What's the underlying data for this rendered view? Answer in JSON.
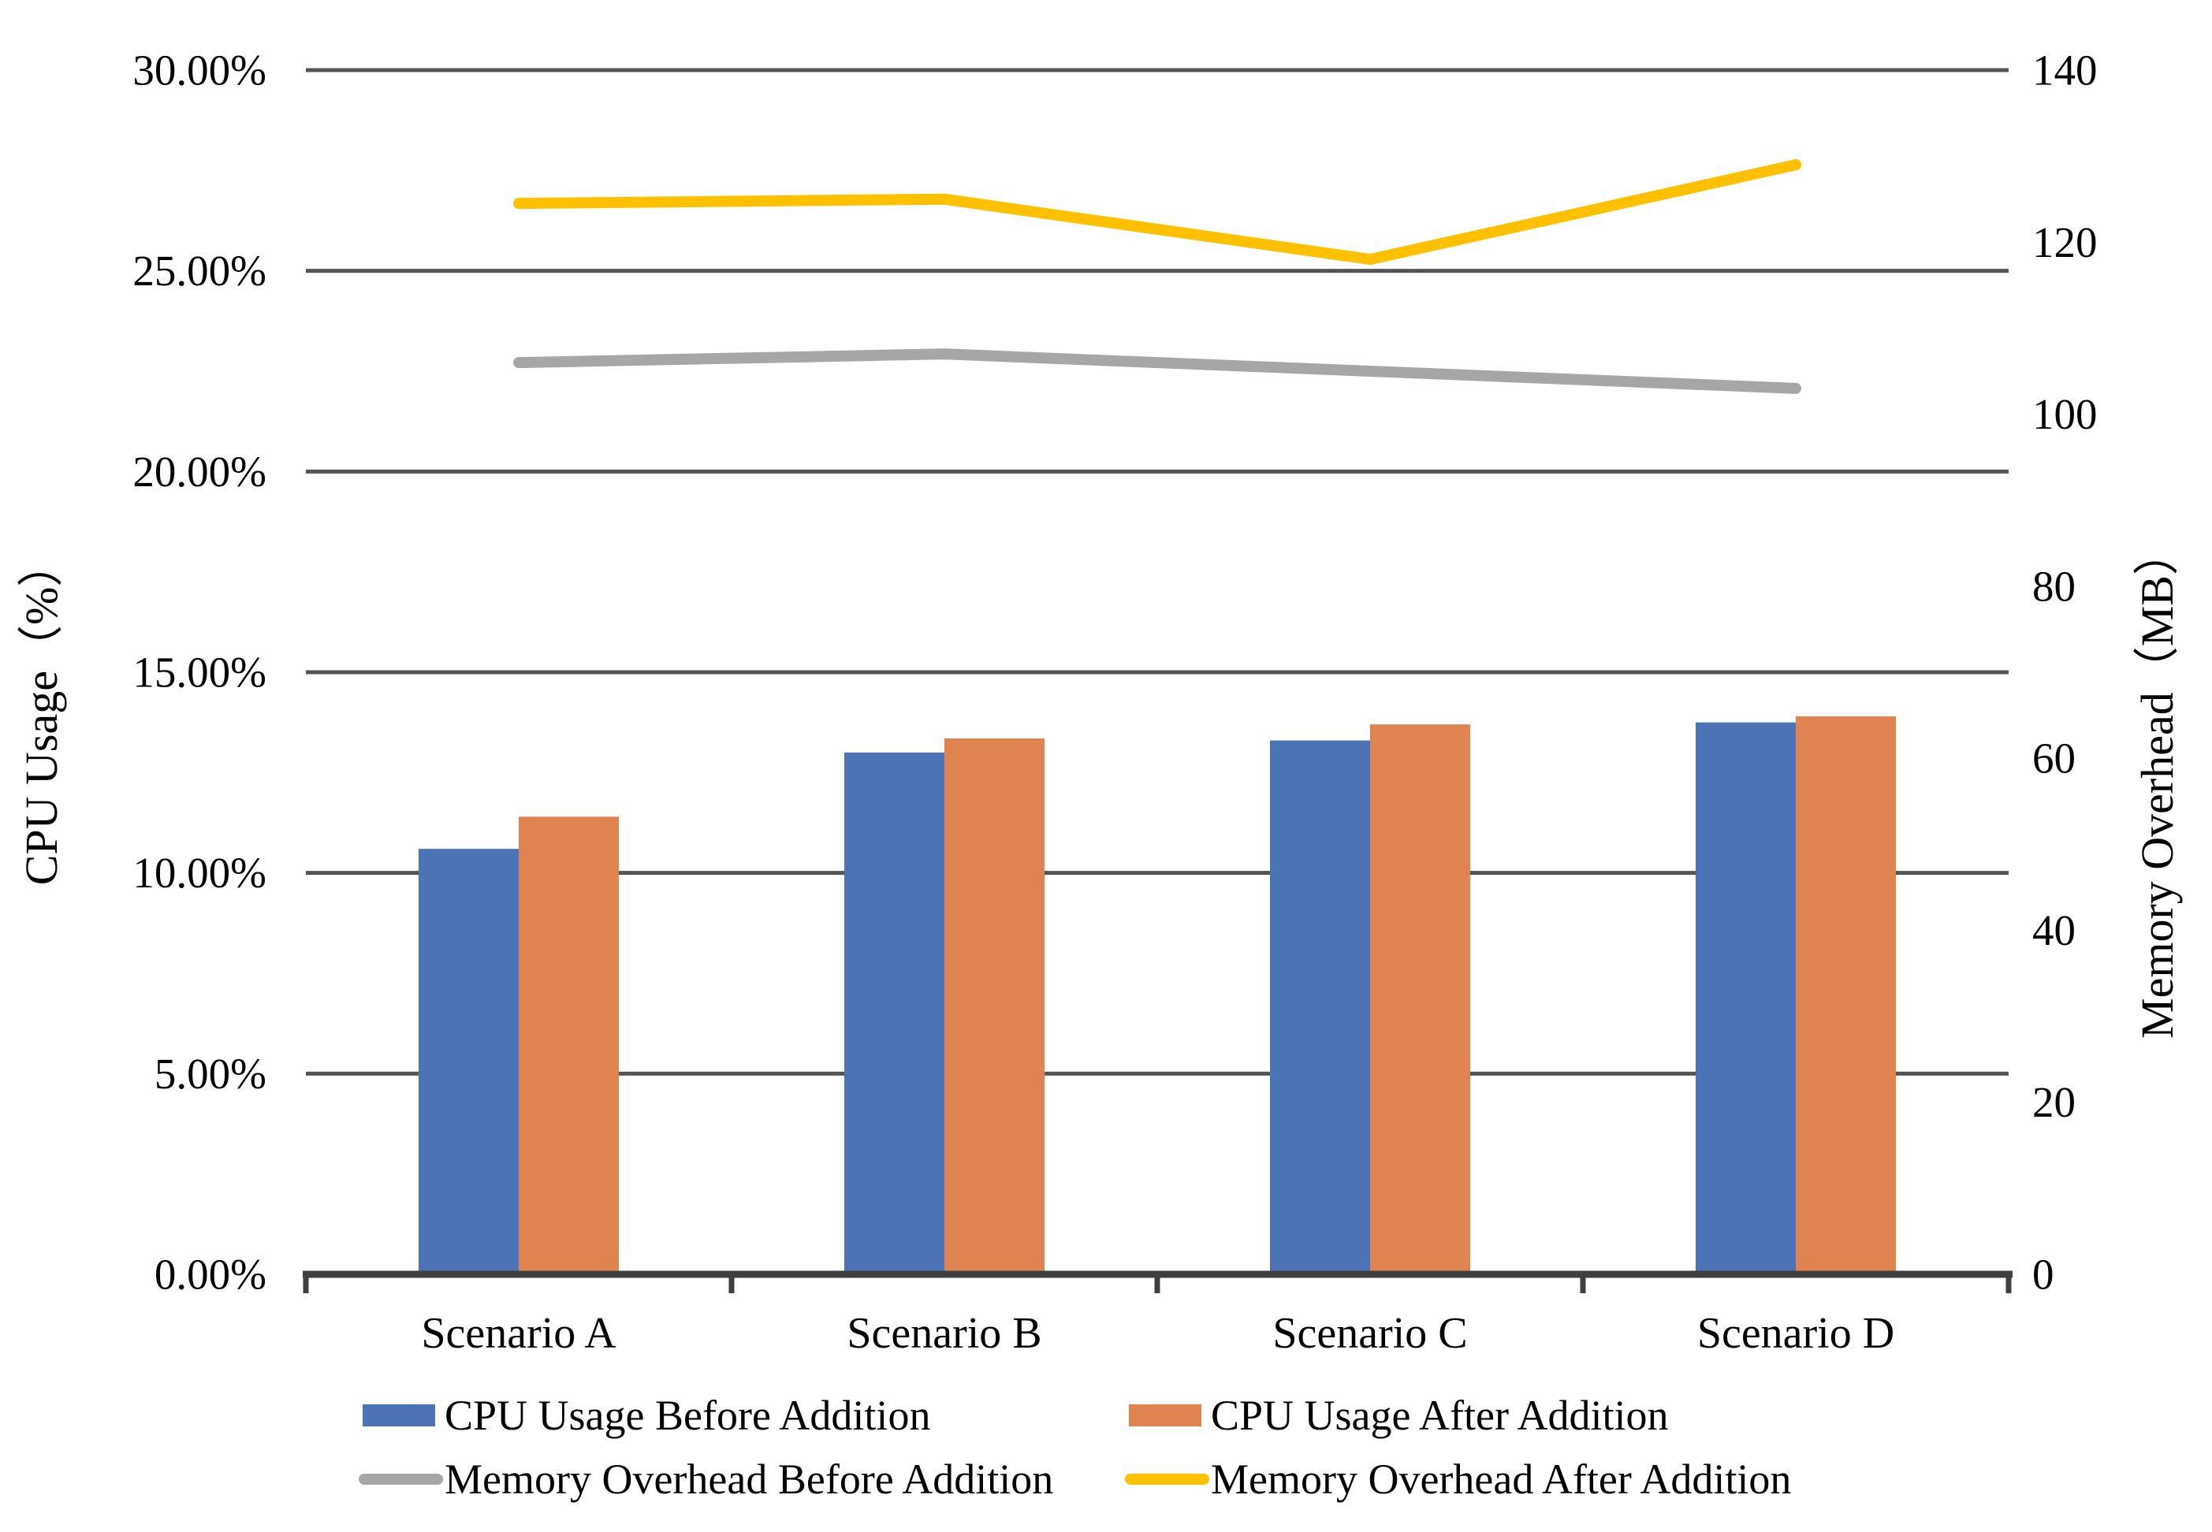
{
  "chart_data": {
    "type": "bar",
    "subtype": "combo-bar-line-dual-axis",
    "categories": [
      "Scenario A",
      "Scenario B",
      "Scenario C",
      "Scenario D"
    ],
    "series": [
      {
        "name": "CPU Usage Before Addition",
        "kind": "bar",
        "axis": "left",
        "color": "#4C73B5",
        "values": [
          10.6,
          13.0,
          13.3,
          13.75
        ]
      },
      {
        "name": "CPU Usage After Addition",
        "kind": "bar",
        "axis": "left",
        "color": "#DF8450",
        "values": [
          11.4,
          13.35,
          13.7,
          13.9
        ]
      },
      {
        "name": "Memory Overhead Before Addition",
        "kind": "line",
        "axis": "right",
        "color": "#A6A6A6",
        "values": [
          106,
          107,
          105,
          103
        ]
      },
      {
        "name": "Memory Overhead After Addition",
        "kind": "line",
        "axis": "right",
        "color": "#FFC000",
        "values": [
          124.5,
          125,
          118,
          129
        ]
      }
    ],
    "left_axis": {
      "title": "CPU Usage（%）",
      "min": 0,
      "max": 30,
      "step": 5,
      "tick_labels": [
        "0.00%",
        "5.00%",
        "10.00%",
        "15.00%",
        "20.00%",
        "25.00%",
        "30.00%"
      ]
    },
    "right_axis": {
      "title": "Memory Overhead（MB）",
      "min": 0,
      "max": 140,
      "step": 20,
      "tick_labels": [
        "0",
        "20",
        "40",
        "60",
        "80",
        "100",
        "120",
        "140"
      ]
    },
    "grid": true,
    "legend_position": "bottom",
    "legend": [
      {
        "label": "CPU Usage Before Addition",
        "swatch": "bar",
        "color": "#4C73B5"
      },
      {
        "label": "CPU Usage After Addition",
        "swatch": "bar",
        "color": "#DF8450"
      },
      {
        "label": "Memory Overhead Before Addition",
        "swatch": "line",
        "color": "#A6A6A6"
      },
      {
        "label": "Memory Overhead After Addition",
        "swatch": "line",
        "color": "#FFC000"
      }
    ],
    "style_colors": {
      "gridline": "#545454",
      "axis_line": "#3F3F3F",
      "text": "#000000",
      "background": "#FFFFFF"
    }
  }
}
